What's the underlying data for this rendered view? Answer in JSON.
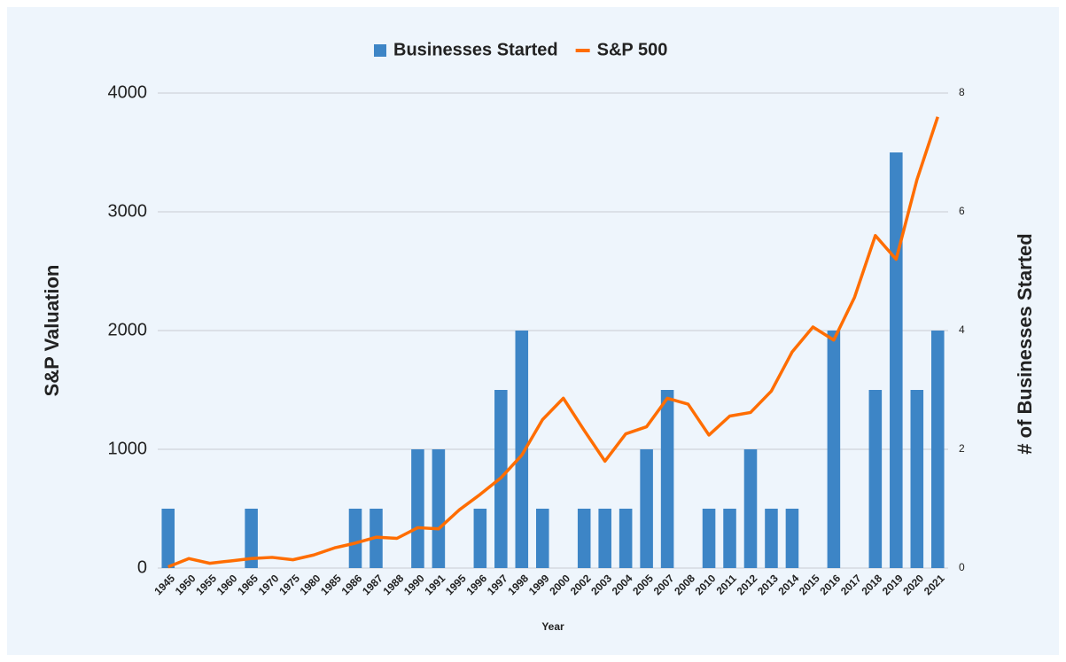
{
  "chart_data": {
    "type": "combo",
    "x_label": "Year",
    "y_label": "S&P Valuation",
    "y2_label": "# of Businesses Started",
    "categories": [
      "1945",
      "1950",
      "1955",
      "1960",
      "1965",
      "1970",
      "1975",
      "1980",
      "1985",
      "1986",
      "1987",
      "1988",
      "1990",
      "1991",
      "1995",
      "1996",
      "1997",
      "1998",
      "1999",
      "2000",
      "2002",
      "2003",
      "2004",
      "2005",
      "2007",
      "2008",
      "2010",
      "2011",
      "2012",
      "2013",
      "2014",
      "2015",
      "2016",
      "2017",
      "2018",
      "2019",
      "2020",
      "2021"
    ],
    "series": [
      {
        "name": "Businesses Started",
        "type": "bar",
        "axis": "y2",
        "color": "#3d85c6",
        "values": [
          1,
          0,
          0,
          0,
          1,
          0,
          0,
          0,
          0,
          1,
          1,
          0,
          2,
          2,
          0,
          1,
          3,
          4,
          1,
          0,
          1,
          1,
          1,
          2,
          3,
          0,
          1,
          1,
          2,
          1,
          1,
          0,
          4,
          0,
          3,
          7,
          3,
          4
        ]
      },
      {
        "name": "S&P 500",
        "type": "line",
        "axis": "y",
        "color": "#ff6d01",
        "values": [
          10,
          80,
          40,
          60,
          80,
          90,
          70,
          110,
          170,
          210,
          260,
          250,
          340,
          330,
          490,
          620,
          760,
          950,
          1250,
          1430,
          1160,
          900,
          1130,
          1190,
          1430,
          1380,
          1120,
          1280,
          1310,
          1490,
          1820,
          2030,
          1920,
          2280,
          2800,
          2600,
          3270,
          3800
        ]
      }
    ],
    "ylim": [
      0,
      4000
    ],
    "yticks": [
      0,
      1000,
      2000,
      3000,
      4000
    ],
    "y2lim": [
      0,
      8
    ],
    "y2ticks": [
      0,
      2,
      4,
      6,
      8
    ],
    "grid": true,
    "legend": "top"
  }
}
